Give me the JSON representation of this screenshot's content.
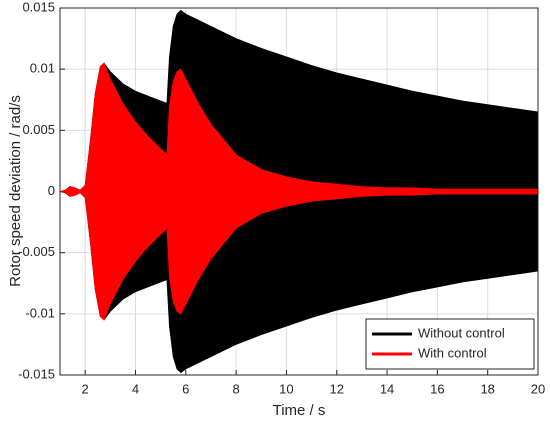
{
  "chart_data": {
    "type": "band",
    "xlabel": "Time / s",
    "ylabel": "Rotor speed deviation / rad/s",
    "xlim": [
      1,
      20
    ],
    "xticks": [
      2,
      4,
      6,
      8,
      10,
      12,
      14,
      16,
      18,
      20
    ],
    "ylim": [
      -0.015,
      0.015
    ],
    "yticks": [
      -0.015,
      -0.01,
      -0.005,
      0,
      0.005,
      0.01,
      0.015
    ],
    "grid": true,
    "legend": "lower right",
    "series": [
      {
        "name": "Without control",
        "color": "#000000",
        "x": [
          1,
          1.2,
          1.4,
          1.6,
          1.8,
          2.0,
          2.2,
          2.4,
          2.6,
          2.75,
          3.0,
          3.5,
          4.0,
          4.5,
          5.0,
          5.25,
          5.35,
          5.5,
          5.65,
          5.8,
          6.0,
          6.5,
          7,
          8,
          9,
          10,
          11,
          12,
          13,
          14,
          15,
          16,
          17,
          18,
          19,
          20
        ],
        "upper": [
          0,
          0.0001,
          0.0004,
          0.0003,
          0.0001,
          0.0005,
          0.004,
          0.008,
          0.0102,
          0.0105,
          0.0098,
          0.0088,
          0.0082,
          0.0078,
          0.0074,
          0.0072,
          0.011,
          0.0135,
          0.0145,
          0.0148,
          0.0145,
          0.014,
          0.0135,
          0.0125,
          0.0117,
          0.011,
          0.0103,
          0.0097,
          0.0092,
          0.0087,
          0.0082,
          0.0078,
          0.0074,
          0.0071,
          0.0068,
          0.0065
        ],
        "lower": [
          0,
          -0.0001,
          -0.0004,
          -0.0003,
          -0.0001,
          -0.0005,
          -0.004,
          -0.008,
          -0.0102,
          -0.0105,
          -0.0098,
          -0.0088,
          -0.0082,
          -0.0078,
          -0.0074,
          -0.0072,
          -0.011,
          -0.0135,
          -0.0145,
          -0.0148,
          -0.0145,
          -0.014,
          -0.0135,
          -0.0125,
          -0.0117,
          -0.011,
          -0.0103,
          -0.0097,
          -0.0092,
          -0.0087,
          -0.0082,
          -0.0078,
          -0.0074,
          -0.0071,
          -0.0068,
          -0.0065
        ]
      },
      {
        "name": "With control",
        "color": "#ff0000",
        "x": [
          1,
          1.2,
          1.4,
          1.6,
          1.8,
          2.0,
          2.2,
          2.4,
          2.6,
          2.75,
          3.0,
          3.5,
          4.0,
          4.5,
          5.0,
          5.25,
          5.35,
          5.5,
          5.65,
          5.8,
          6.0,
          6.5,
          7,
          8,
          9,
          10,
          11,
          12,
          13,
          14,
          15,
          16,
          17,
          18,
          19,
          20
        ],
        "upper": [
          0,
          0.0001,
          0.0004,
          0.0003,
          0.0001,
          0.0005,
          0.004,
          0.008,
          0.0102,
          0.0105,
          0.0092,
          0.0072,
          0.0057,
          0.0045,
          0.0035,
          0.003,
          0.007,
          0.009,
          0.0098,
          0.01,
          0.0092,
          0.0072,
          0.0055,
          0.003,
          0.0018,
          0.0012,
          0.0008,
          0.0006,
          0.0004,
          0.0003,
          0.0003,
          0.0002,
          0.0002,
          0.0002,
          0.0002,
          0.0002
        ],
        "lower": [
          0,
          -0.0001,
          -0.0004,
          -0.0003,
          -0.0001,
          -0.0005,
          -0.004,
          -0.008,
          -0.0102,
          -0.0105,
          -0.0092,
          -0.0072,
          -0.0057,
          -0.0045,
          -0.0035,
          -0.003,
          -0.007,
          -0.009,
          -0.0098,
          -0.01,
          -0.0092,
          -0.0072,
          -0.0055,
          -0.003,
          -0.0018,
          -0.0012,
          -0.0008,
          -0.0006,
          -0.0004,
          -0.0003,
          -0.0003,
          -0.0002,
          -0.0002,
          -0.0002,
          -0.0002,
          -0.0002
        ]
      }
    ]
  }
}
